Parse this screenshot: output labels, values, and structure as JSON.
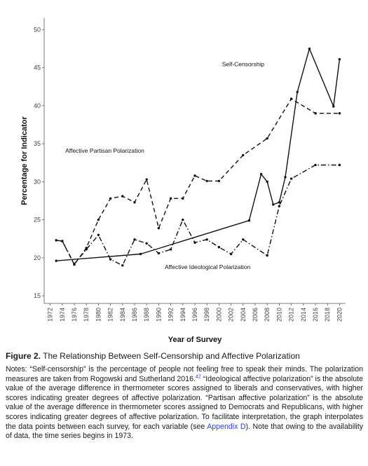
{
  "chart_data": {
    "type": "line",
    "xlabel": "Year of Survey",
    "ylabel": "Percentage for Indicator",
    "x_ticks": [
      1972,
      1974,
      1976,
      1978,
      1980,
      1982,
      1984,
      1986,
      1988,
      1990,
      1992,
      1994,
      1996,
      1998,
      2000,
      2002,
      2004,
      2006,
      2008,
      2010,
      2012,
      2014,
      2016,
      2018,
      2020
    ],
    "y_ticks": [
      15,
      20,
      25,
      30,
      35,
      40,
      45,
      50
    ],
    "xlim": [
      1971,
      2021
    ],
    "ylim": [
      14,
      51.5
    ],
    "grid": false,
    "annotations": [
      {
        "text": "Self-Censorship",
        "x": 2000.5,
        "y": 45.2
      },
      {
        "text": "Affective Partisan Polarization",
        "x": 1974.5,
        "y": 33.8
      },
      {
        "text": "Affective Ideological Polarization",
        "x": 1991,
        "y": 18.5
      }
    ],
    "series": [
      {
        "style": "solid",
        "points": [
          [
            1973,
            19.6
          ],
          [
            1987,
            20.5
          ],
          [
            2005,
            24.9
          ],
          [
            2007,
            31.0
          ],
          [
            2008,
            30.0
          ],
          [
            2009,
            27.0
          ],
          [
            2010,
            27.3
          ],
          [
            2011,
            30.6
          ],
          [
            2013,
            41.8
          ],
          [
            2015,
            47.5
          ],
          [
            2019,
            39.9
          ],
          [
            2020,
            46.1
          ]
        ]
      },
      {
        "style": "dashed",
        "points": [
          [
            1973,
            22.3
          ],
          [
            1974,
            22.2
          ],
          [
            1976,
            19.1
          ],
          [
            1978,
            21.3
          ],
          [
            1980,
            25.0
          ],
          [
            1982,
            27.8
          ],
          [
            1984,
            28.1
          ],
          [
            1986,
            27.3
          ],
          [
            1988,
            30.3
          ],
          [
            1990,
            23.9
          ],
          [
            1992,
            27.8
          ],
          [
            1994,
            27.8
          ],
          [
            1996,
            30.8
          ],
          [
            1998,
            30.1
          ],
          [
            2000,
            30.1
          ],
          [
            2004,
            33.5
          ],
          [
            2008,
            35.7
          ],
          [
            2012,
            40.9
          ],
          [
            2016,
            39.0
          ],
          [
            2020,
            39.0
          ]
        ]
      },
      {
        "style": "dashdot",
        "points": [
          [
            1973,
            22.3
          ],
          [
            1974,
            22.2
          ],
          [
            1976,
            19.2
          ],
          [
            1978,
            21.1
          ],
          [
            1980,
            23.0
          ],
          [
            1982,
            19.8
          ],
          [
            1984,
            19.0
          ],
          [
            1986,
            22.4
          ],
          [
            1988,
            21.9
          ],
          [
            1990,
            20.6
          ],
          [
            1992,
            21.1
          ],
          [
            1994,
            25.0
          ],
          [
            1996,
            22.0
          ],
          [
            1998,
            22.4
          ],
          [
            2000,
            21.4
          ],
          [
            2002,
            20.5
          ],
          [
            2004,
            22.4
          ],
          [
            2008,
            20.3
          ],
          [
            2010,
            26.8
          ],
          [
            2012,
            30.4
          ],
          [
            2016,
            32.2
          ],
          [
            2020,
            32.2
          ]
        ]
      }
    ]
  },
  "caption": {
    "figure_label": "Figure 2.",
    "figure_title": "The Relationship Between Self-Censorship and Affective Polarization",
    "notes_1": "Notes: “Self-censorship” is the percentage of people not feeling free to speak their minds. The polarization measures are taken from Rogowski and Sutherland 2016.",
    "footnote_ref": "42",
    "notes_2": " “Ideological affective polarization” is the absolute value of the average difference in thermometer scores assigned to liberals and conservatives, with higher scores indicating greater degrees of affective polarization. “Partisan affective polarization” is the absolute value of the average difference in thermometer scores assigned to Democrats and Republicans, with higher scores indicating greater degrees of affective polarization. To facilitate interpretation, the graph interpolates the data points between each survey, for each variable (see ",
    "appendix_link": "Appendix D",
    "notes_3": "). Note that owing to the availability of data, the time series begins in 1973."
  }
}
